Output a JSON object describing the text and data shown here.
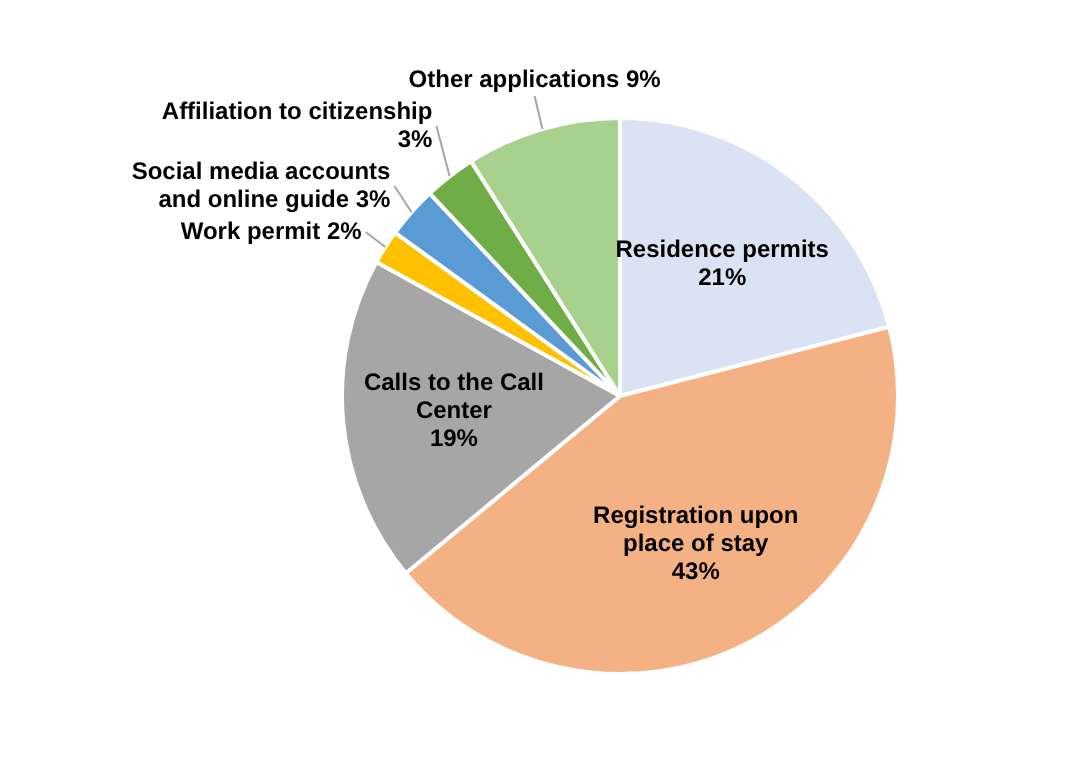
{
  "chart_data": {
    "type": "pie",
    "categories": [
      "Residence permits",
      "Registration upon place of stay",
      "Calls to the Call Center",
      "Work permit",
      "Social media accounts and online guide",
      "Affiliation to citizenship",
      "Other applications"
    ],
    "values": [
      21,
      43,
      19,
      2,
      3,
      3,
      9
    ],
    "value_labels": [
      "21%",
      "43%",
      "19%",
      "2%",
      "3%",
      "3%",
      "9%"
    ],
    "colors": [
      "#dae3f3",
      "#f4b183",
      "#a6a6a6",
      "#ffc000",
      "#5b9bd5",
      "#70ad47",
      "#a9d18e"
    ]
  }
}
